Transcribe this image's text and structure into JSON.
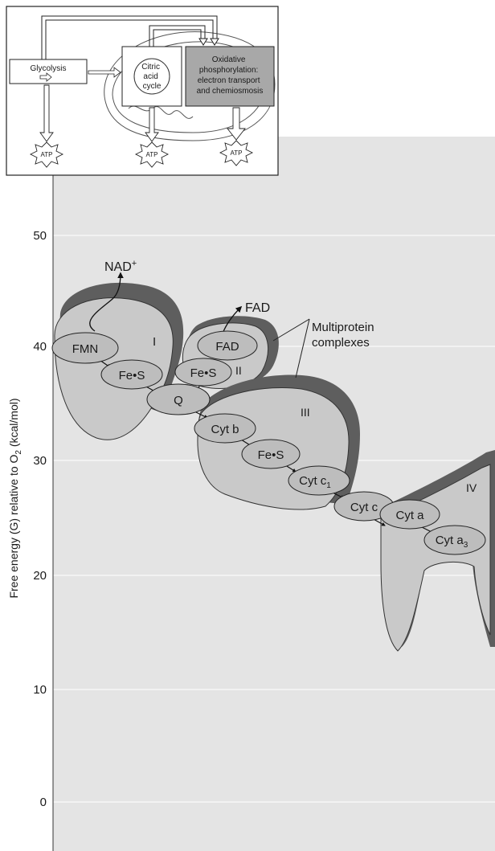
{
  "inset": {
    "glycolysis": "Glycolysis",
    "citric": [
      "Citric",
      "acid",
      "cycle"
    ],
    "oxidative": [
      "Oxidative",
      "phosphorylation:",
      "electron transport",
      "and chemiosmosis"
    ],
    "atp": "ATP"
  },
  "axis": {
    "label": "Free energy (G) relative to O",
    "label_sub": "2",
    "label_unit": " (kcal/mol)",
    "ticks": [
      "50",
      "40",
      "30",
      "20",
      "10",
      "0"
    ]
  },
  "complexes": {
    "I": "I",
    "II": "II",
    "III": "III",
    "IV": "IV",
    "label_line1": "Multiprotein",
    "label_line2": "complexes"
  },
  "carriers": {
    "fmn": "FMN",
    "fes1": "Fe•S",
    "fad": "FAD",
    "fes2": "Fe•S",
    "q": "Q",
    "cytb": "Cyt b",
    "fes3": "Fe•S",
    "cytc1": "Cyt c",
    "cytc1_sub": "1",
    "cytc": "Cyt c",
    "cyta": "Cyt a",
    "cyta3": "Cyt a",
    "cyta3_sub": "3"
  },
  "products": {
    "nad": "NAD",
    "nad_sup": "+",
    "fad": "FAD"
  },
  "colors": {
    "panel": "#e4e4e4",
    "gridline": "#f4f4f4",
    "complex_light": "#c9c9c9",
    "complex_dark": "#5e5e5e",
    "carrier": "#bdbdbd",
    "inset_dark": "#a8a8a8"
  }
}
